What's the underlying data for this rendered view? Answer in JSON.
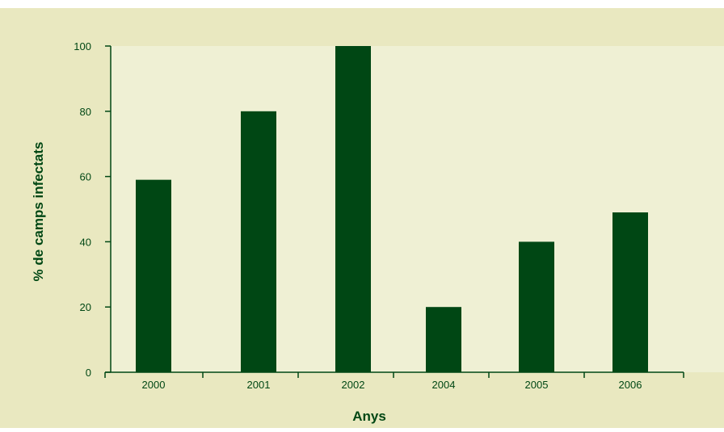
{
  "colors": {
    "outer_background": "#e9e8c0",
    "plot_background": "#eff0d4",
    "bar": "#004714",
    "axis": "#004714",
    "text": "#004714"
  },
  "chart_data": {
    "type": "bar",
    "categories": [
      "2000",
      "2001",
      "2002",
      "2004",
      "2005",
      "2006"
    ],
    "values": [
      59,
      80,
      100,
      20,
      40,
      49
    ],
    "xlabel": "Anys",
    "ylabel": "% de camps infectats",
    "ylim": [
      0,
      100
    ],
    "yticks": [
      "0",
      "20",
      "40",
      "60",
      "80",
      "100"
    ],
    "grid": false,
    "legend": "none"
  }
}
